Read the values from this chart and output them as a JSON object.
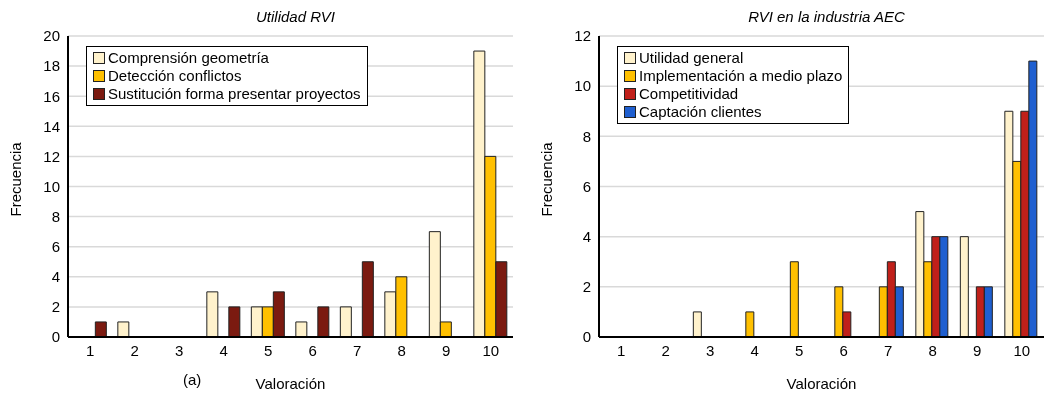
{
  "chart_data": [
    {
      "type": "bar",
      "title": "Utilidad RVI",
      "xlabel": "Valoración",
      "ylabel": "Frecuencia",
      "categories": [
        "1",
        "2",
        "3",
        "4",
        "5",
        "6",
        "7",
        "8",
        "9",
        "10"
      ],
      "series": [
        {
          "name": "Comprensión geometría",
          "color": "#fff2cc",
          "values": [
            0,
            1,
            0,
            3,
            2,
            1,
            2,
            3,
            7,
            19
          ]
        },
        {
          "name": "Detección conflictos",
          "color": "#ffc000",
          "values": [
            0,
            0,
            0,
            0,
            2,
            0,
            0,
            4,
            1,
            12
          ]
        },
        {
          "name": "Sustitución forma presentar proyectos",
          "color": "#7b1a10",
          "values": [
            1,
            0,
            0,
            2,
            3,
            2,
            5,
            0,
            0,
            5
          ]
        }
      ],
      "ylim": [
        0,
        20
      ],
      "yticks": [
        0,
        2,
        4,
        6,
        8,
        10,
        12,
        14,
        16,
        18,
        20
      ],
      "grid": "y",
      "legend": "top left",
      "annotations": [
        "(a)"
      ]
    },
    {
      "type": "bar",
      "title": "RVI en la industria AEC",
      "xlabel": "Valoración",
      "ylabel": "Frecuencia",
      "categories": [
        "1",
        "2",
        "3",
        "4",
        "5",
        "6",
        "7",
        "8",
        "9",
        "10"
      ],
      "series": [
        {
          "name": "Utilidad general",
          "color": "#fff2cc",
          "values": [
            0,
            0,
            1,
            0,
            0,
            0,
            0,
            5,
            4,
            9
          ]
        },
        {
          "name": "Implementación a medio plazo",
          "color": "#ffc000",
          "values": [
            0,
            0,
            0,
            1,
            3,
            2,
            2,
            3,
            0,
            7
          ]
        },
        {
          "name": "Competitividad",
          "color": "#c0201a",
          "values": [
            0,
            0,
            0,
            0,
            0,
            1,
            3,
            4,
            2,
            9
          ]
        },
        {
          "name": "Captación clientes",
          "color": "#1f5fd0",
          "values": [
            0,
            0,
            0,
            0,
            0,
            0,
            2,
            4,
            2,
            11
          ]
        }
      ],
      "ylim": [
        0,
        12
      ],
      "yticks": [
        0,
        2,
        4,
        6,
        8,
        10,
        12
      ],
      "grid": "y",
      "legend": "top left"
    }
  ]
}
